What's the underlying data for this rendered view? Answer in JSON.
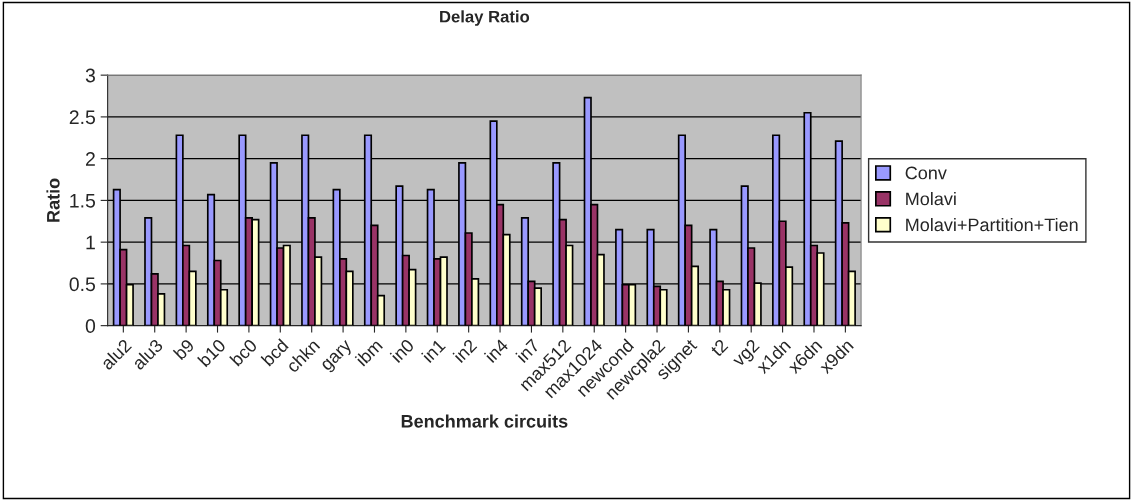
{
  "chart_data": {
    "type": "bar",
    "title": "Delay Ratio",
    "xlabel": "Benchmark circuits",
    "ylabel": "Ratio",
    "categories": [
      "alu2",
      "alu3",
      "b9",
      "b10",
      "bc0",
      "bcd",
      "chkn",
      "gary",
      "ibm",
      "in0",
      "in1",
      "in2",
      "in4",
      "in7",
      "max512",
      "max1024",
      "newcond",
      "newcpla2",
      "signet",
      "t2",
      "vg2",
      "x1dn",
      "x6dn",
      "x9dn"
    ],
    "series": [
      {
        "name": "Conv",
        "color": "#9999ff",
        "values": [
          1.63,
          1.29,
          2.28,
          1.57,
          2.28,
          1.95,
          2.28,
          1.63,
          2.28,
          1.67,
          1.63,
          1.95,
          2.45,
          1.29,
          1.95,
          2.73,
          1.15,
          1.15,
          2.28,
          1.15,
          1.67,
          2.28,
          2.55,
          2.21
        ]
      },
      {
        "name": "Molavi",
        "color": "#993366",
        "values": [
          0.91,
          0.62,
          0.96,
          0.78,
          1.29,
          0.93,
          1.29,
          0.8,
          1.2,
          0.84,
          0.8,
          1.11,
          1.45,
          0.53,
          1.27,
          1.45,
          0.49,
          0.47,
          1.2,
          0.53,
          0.93,
          1.25,
          0.96,
          1.23
        ]
      },
      {
        "name": "Molavi+Partition+Tien",
        "color": "#ffffcc",
        "values": [
          0.49,
          0.38,
          0.65,
          0.43,
          1.27,
          0.96,
          0.82,
          0.65,
          0.36,
          0.67,
          0.82,
          0.56,
          1.09,
          0.45,
          0.96,
          0.85,
          0.49,
          0.43,
          0.71,
          0.43,
          0.51,
          0.7,
          0.87,
          0.65
        ]
      }
    ],
    "ylim": [
      0,
      3
    ],
    "yticks": [
      0,
      0.5,
      1,
      1.5,
      2,
      2.5,
      3
    ],
    "grid": "y",
    "legend": "right"
  }
}
